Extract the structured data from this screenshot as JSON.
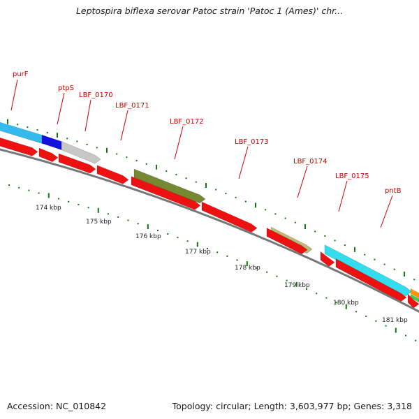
{
  "title": "Leptospira biflexa serovar Patoc strain 'Patoc 1 (Ames)' chr...",
  "accession": "Accession: NC_010842",
  "stats": "Topology: circular; Length: 3,603,977 bp; Genes: 3,318",
  "gene_labels": [
    "purF",
    "ptpS",
    "LBF_0170",
    "LBF_0171",
    "LBF_0172",
    "LBF_0173",
    "LBF_0174",
    "LBF_0175",
    "pntB"
  ],
  "kbp_labels": [
    "174 kbp",
    "175 kbp",
    "176 kbp",
    "177 kbp",
    "178 kbp",
    "179 kbp",
    "180 kbp",
    "181 kbp"
  ],
  "colors": {
    "label_red": "#cc0000",
    "cds_red": "#ee1111",
    "backbone": "#777777",
    "tick_green": "#117711",
    "cyan": "#33ddee",
    "light_blue": "#33bbee",
    "blue": "#1111dd",
    "grey": "#c8c8c8",
    "olive": "#778833",
    "khaki": "#bbbb77",
    "orange": "#ff9900",
    "green": "#44cc44"
  }
}
